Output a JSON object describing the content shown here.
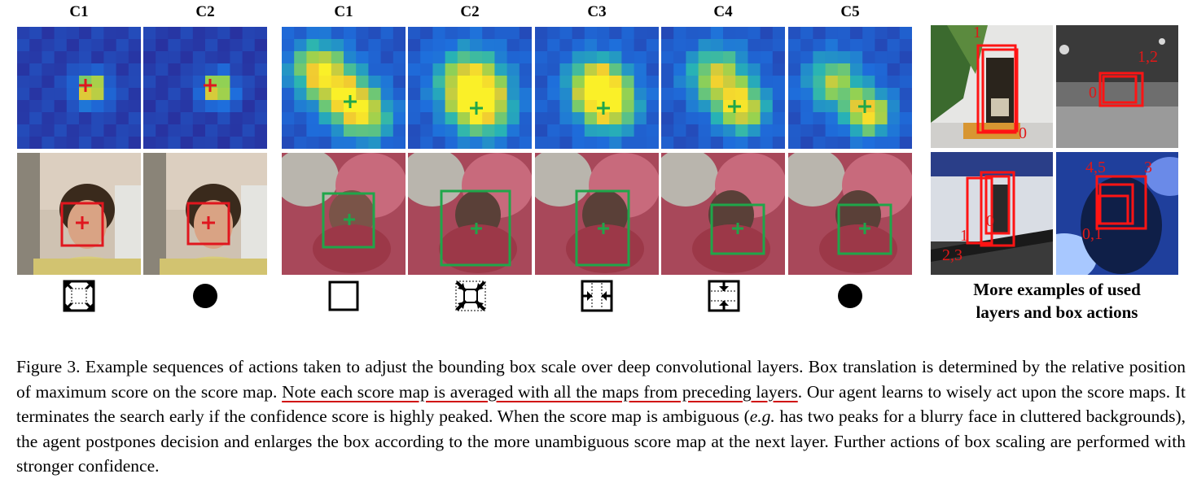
{
  "group1": {
    "labels": [
      "C1",
      "C2"
    ],
    "marker_color": "#e0161e"
  },
  "group2": {
    "labels": [
      "C1",
      "C2",
      "C3",
      "C4",
      "C5"
    ],
    "marker_color": "#1fa64a"
  },
  "actions": {
    "group1": [
      "enlarge-box-icon",
      "stop-circle-icon"
    ],
    "group2": [
      "keep-box-icon",
      "shrink-box-icon",
      "horizontal-shrink-icon",
      "vertical-shrink-icon",
      "stop-circle-icon"
    ]
  },
  "examples": {
    "title_line1": "More examples of used",
    "title_line2": "layers and box actions",
    "labels": {
      "bottle_top": "1",
      "bottle_bottom": "0",
      "car_right": "1,2",
      "car_left": "0",
      "skater_right": "0",
      "skater_mid": "1",
      "skater_left": "2,3",
      "concert_top_left": "4,5",
      "concert_top_right": "3",
      "concert_bottom": "0,1"
    }
  },
  "caption": {
    "part1": "Figure 3. Example sequences of actions taken to adjust the bounding box scale over deep convolutional layers. Box translation is determined by the relative position of maximum score on the score map. ",
    "underlined": "Note each score map is averaged with all the maps from preceding layers",
    "part2": ". Our agent learns to wisely act upon the score maps. It terminates the search early if the confidence score is highly peaked. When the score map is ambiguous (",
    "eg": "e.g.",
    "part3": " has two peaks for a blurry face in cluttered backgrounds), the agent postpones decision and enlarges the box according to the more unambiguous score map at the next layer. Further actions of box scaling are performed with stronger confidence."
  }
}
